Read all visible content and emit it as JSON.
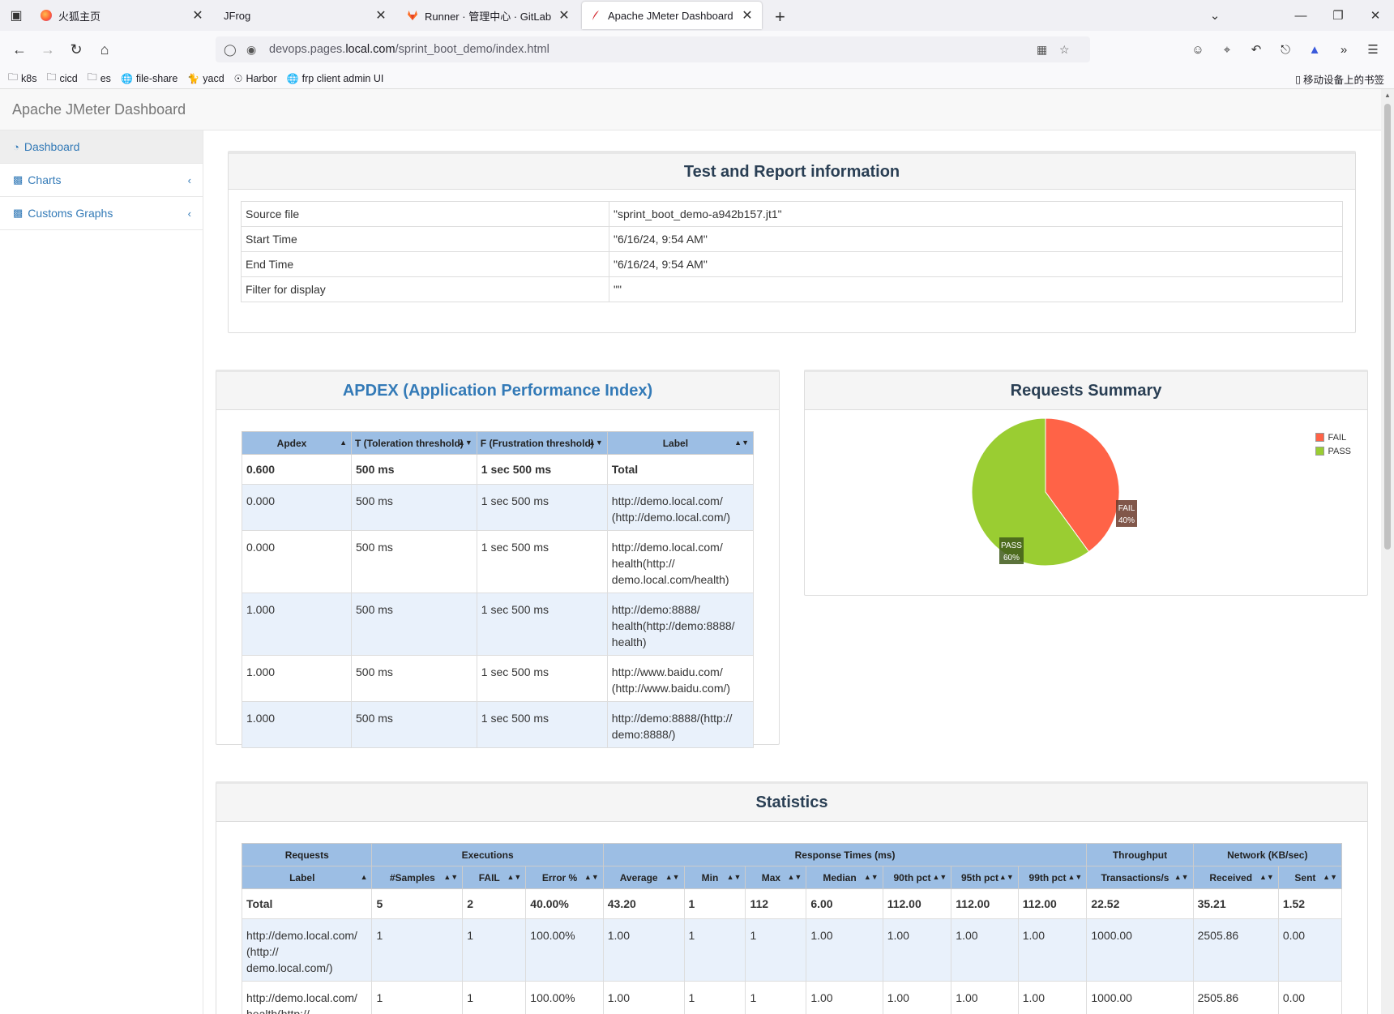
{
  "browser": {
    "tabs": [
      {
        "title": "火狐主页",
        "icon": "firefox-icon"
      },
      {
        "title": "JFrog",
        "icon": "none"
      },
      {
        "title": "Runner · 管理中心 · GitLab",
        "icon": "gitlab-icon"
      },
      {
        "title": "Apache JMeter Dashboard",
        "icon": "jmeter-feather-icon"
      }
    ],
    "url_prefix": "devops.pages.",
    "url_domain": "local.com",
    "url_path": "/sprint_boot_demo/index.html",
    "bookmarks": [
      {
        "label": "k8s",
        "icon": "folder-icon"
      },
      {
        "label": "cicd",
        "icon": "folder-icon"
      },
      {
        "label": "es",
        "icon": "folder-icon"
      },
      {
        "label": "file-share",
        "icon": "globe-icon"
      },
      {
        "label": "yacd",
        "icon": "cat-icon"
      },
      {
        "label": "Harbor",
        "icon": "harbor-icon"
      },
      {
        "label": "frp client admin UI",
        "icon": "globe-icon"
      }
    ],
    "mobile_bookmarks": "移动设备上的书签"
  },
  "app": {
    "brand": "Apache JMeter Dashboard",
    "sidebar": [
      {
        "label": "Dashboard",
        "icon": "dashboard-icon"
      },
      {
        "label": "Charts",
        "icon": "bar-chart-icon"
      },
      {
        "label": "Customs Graphs",
        "icon": "bar-chart-icon"
      }
    ]
  },
  "report_info": {
    "title": "Test and Report information",
    "rows": [
      {
        "k": "Source file",
        "v": "\"sprint_boot_demo-a942b157.jt1\""
      },
      {
        "k": "Start Time",
        "v": "\"6/16/24, 9:54 AM\""
      },
      {
        "k": "End Time",
        "v": "\"6/16/24, 9:54 AM\""
      },
      {
        "k": "Filter for display",
        "v": "\"\""
      }
    ]
  },
  "apdex": {
    "title": "APDEX (Application Performance Index)",
    "headers": [
      "Apdex",
      "T (Toleration threshold)",
      "F (Frustration threshold)",
      "Label"
    ],
    "total": [
      "0.600",
      "500 ms",
      "1 sec 500 ms",
      "Total"
    ],
    "rows": [
      [
        "0.000",
        "500 ms",
        "1 sec 500 ms",
        "http://demo.local.com/\n(http://demo.local.com/)"
      ],
      [
        "0.000",
        "500 ms",
        "1 sec 500 ms",
        "http://demo.local.com/\nhealth(http://\ndemo.local.com/health)"
      ],
      [
        "1.000",
        "500 ms",
        "1 sec 500 ms",
        "http://demo:8888/\nhealth(http://demo:8888/\nhealth)"
      ],
      [
        "1.000",
        "500 ms",
        "1 sec 500 ms",
        "http://www.baidu.com/\n(http://www.baidu.com/)"
      ],
      [
        "1.000",
        "500 ms",
        "1 sec 500 ms",
        "http://demo:8888/(http://\ndemo:8888/)"
      ]
    ]
  },
  "summary": {
    "title": "Requests Summary",
    "legend": [
      "FAIL",
      "PASS"
    ],
    "fail_label": "FAIL",
    "fail_pct": "40%",
    "pass_label": "PASS",
    "pass_pct": "60%"
  },
  "chart_data": {
    "type": "pie",
    "title": "Requests Summary",
    "categories": [
      "FAIL",
      "PASS"
    ],
    "values": [
      40,
      60
    ],
    "colors": [
      "#FF6347",
      "#9ACD32"
    ],
    "legend_position": "top-right"
  },
  "stats": {
    "title": "Statistics",
    "groups": [
      "Requests",
      "Executions",
      "Response Times (ms)",
      "Throughput",
      "Network (KB/sec)"
    ],
    "headers": [
      "Label",
      "#Samples",
      "FAIL",
      "Error %",
      "Average",
      "Min",
      "Max",
      "Median",
      "90th pct",
      "95th pct",
      "99th pct",
      "Transactions/s",
      "Received",
      "Sent"
    ],
    "total": [
      "Total",
      "5",
      "2",
      "40.00%",
      "43.20",
      "1",
      "112",
      "6.00",
      "112.00",
      "112.00",
      "112.00",
      "22.52",
      "35.21",
      "1.52"
    ],
    "rows": [
      [
        "http://demo.local.com/\n(http://\ndemo.local.com/)",
        "1",
        "1",
        "100.00%",
        "1.00",
        "1",
        "1",
        "1.00",
        "1.00",
        "1.00",
        "1.00",
        "1000.00",
        "2505.86",
        "0.00"
      ],
      [
        "http://demo.local.com/\nhealth(http://",
        "1",
        "1",
        "100.00%",
        "1.00",
        "1",
        "1",
        "1.00",
        "1.00",
        "1.00",
        "1.00",
        "1000.00",
        "2505.86",
        "0.00"
      ]
    ]
  }
}
